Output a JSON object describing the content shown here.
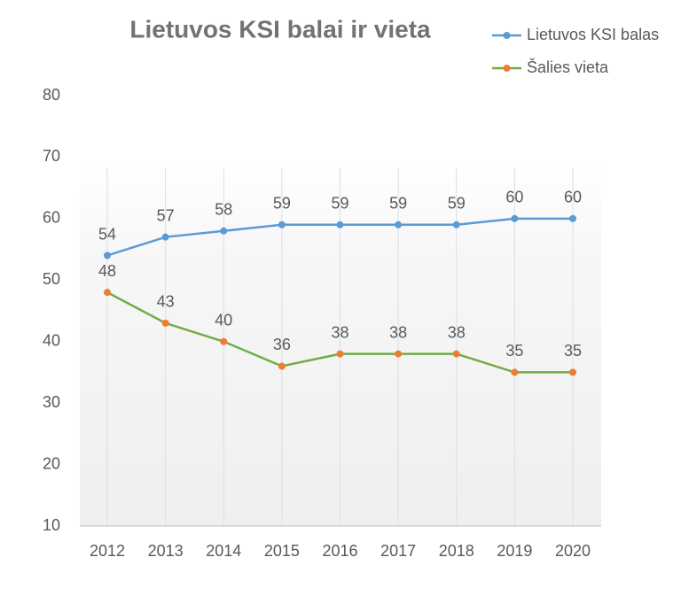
{
  "chart_data": {
    "type": "line",
    "title": "Lietuvos KSI balai ir vieta",
    "categories": [
      "2012",
      "2013",
      "2014",
      "2015",
      "2016",
      "2017",
      "2018",
      "2019",
      "2020"
    ],
    "series": [
      {
        "name": "Lietuvos KSI balas",
        "color": "#5b9bd5",
        "marker_color": "#5b9bd5",
        "values": [
          54,
          57,
          58,
          59,
          59,
          59,
          59,
          60,
          60
        ]
      },
      {
        "name": "Šalies vieta",
        "color": "#70ad47",
        "marker_color": "#ed7d31",
        "values": [
          48,
          43,
          40,
          36,
          38,
          38,
          38,
          35,
          35
        ]
      }
    ],
    "ylim": [
      10,
      80
    ],
    "yticks": [
      10,
      20,
      30,
      40,
      50,
      60,
      70,
      80
    ],
    "grid": true,
    "legend": "top-right"
  }
}
